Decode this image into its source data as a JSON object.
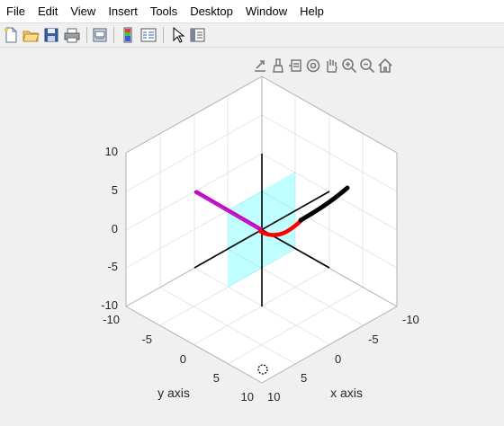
{
  "menubar": {
    "items": [
      {
        "id": "file",
        "label": "File"
      },
      {
        "id": "edit",
        "label": "Edit"
      },
      {
        "id": "view",
        "label": "View"
      },
      {
        "id": "insert",
        "label": "Insert"
      },
      {
        "id": "tools",
        "label": "Tools"
      },
      {
        "id": "desktop",
        "label": "Desktop"
      },
      {
        "id": "window",
        "label": "Window"
      },
      {
        "id": "help",
        "label": "Help"
      }
    ]
  },
  "toolbar": {
    "buttons": [
      "new-figure-icon",
      "open-file-icon",
      "save-icon",
      "print-icon",
      "print-preview-icon",
      "insert-colorbar-icon",
      "insert-legend-icon",
      "edit-plot-cursor-icon",
      "property-inspector-icon"
    ]
  },
  "axes_toolbar": {
    "buttons": [
      "export-icon",
      "brush-icon",
      "data-tips-icon",
      "rotate-3d-icon",
      "pan-icon",
      "zoom-in-icon",
      "zoom-out-icon",
      "home-icon"
    ]
  },
  "plot": {
    "x_label": "x axis",
    "y_label": "y axis",
    "z_ticks": [
      "10",
      "5",
      "0",
      "-5",
      "-10"
    ],
    "x_ticks": [
      "-10",
      "-5",
      "0",
      "5",
      "10"
    ],
    "y_ticks": [
      "-10",
      "-5",
      "0",
      "5",
      "10"
    ],
    "colors": {
      "plane": "#00ffff",
      "segment_magenta": "#cc00cc",
      "segment_red": "#ff0000",
      "segment_black": "#000000",
      "axis_lines": "#000000",
      "box": "#b0b0b0"
    }
  }
}
